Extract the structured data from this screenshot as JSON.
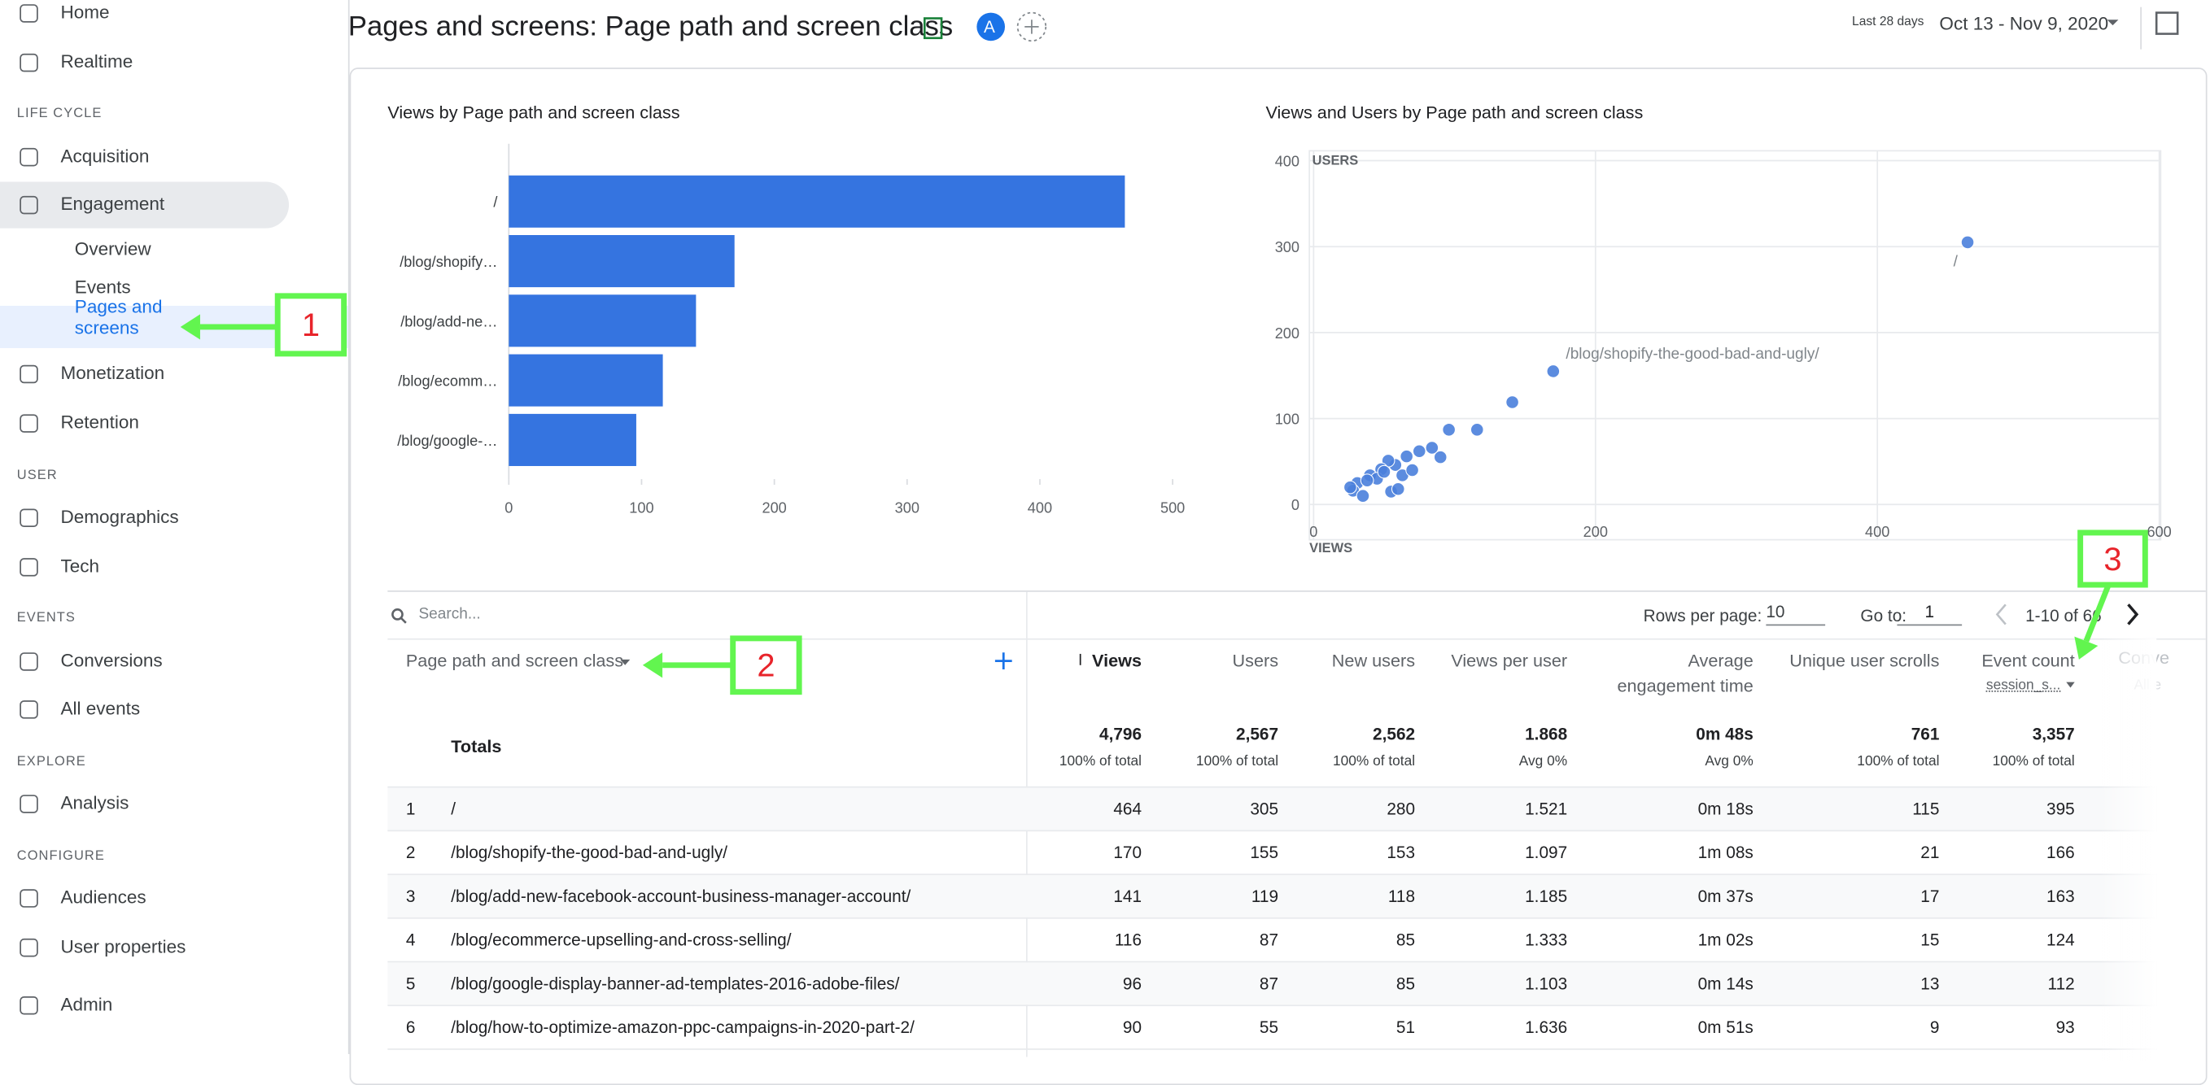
{
  "header": {
    "title": "Pages and screens: Page path and screen class",
    "avatar": "A",
    "date_range_label": "Last 28 days",
    "date_range": "Oct 13 - Nov 9, 2020"
  },
  "sidebar": [
    {
      "label": "Home",
      "level": "item"
    },
    {
      "label": "Realtime",
      "level": "item"
    },
    {
      "label": "LIFE CYCLE",
      "level": "section"
    },
    {
      "label": "Acquisition",
      "level": "item"
    },
    {
      "label": "Engagement",
      "level": "item",
      "selected": true
    },
    {
      "label": "Overview",
      "level": "sub"
    },
    {
      "label": "Events",
      "level": "sub"
    },
    {
      "label": "Pages and screens",
      "level": "sub",
      "active": true
    },
    {
      "label": "Monetization",
      "level": "item"
    },
    {
      "label": "Retention",
      "level": "item"
    },
    {
      "label": "USER",
      "level": "section"
    },
    {
      "label": "Demographics",
      "level": "item"
    },
    {
      "label": "Tech",
      "level": "item"
    },
    {
      "label": "EVENTS",
      "level": "section"
    },
    {
      "label": "Conversions",
      "level": "item"
    },
    {
      "label": "All events",
      "level": "item"
    },
    {
      "label": "EXPLORE",
      "level": "section"
    },
    {
      "label": "Analysis",
      "level": "item"
    },
    {
      "label": "CONFIGURE",
      "level": "section"
    },
    {
      "label": "Audiences",
      "level": "item"
    },
    {
      "label": "User properties",
      "level": "item"
    },
    {
      "label": "Admin",
      "level": "item"
    }
  ],
  "chart_data": [
    {
      "type": "bar",
      "orientation": "horizontal",
      "title": "Views by Page path and screen class",
      "categories": [
        "/",
        "/blog/shopify…",
        "/blog/add-ne…",
        "/blog/ecomm…",
        "/blog/google-…"
      ],
      "values": [
        464,
        170,
        141,
        116,
        96
      ],
      "color": "#3574e0",
      "xlim": [
        0,
        500
      ],
      "xticks": [
        0,
        100,
        200,
        300,
        400,
        500
      ]
    },
    {
      "type": "scatter",
      "title": "Views and Users by Page path and screen class",
      "x_label": "VIEWS",
      "y_label": "USERS",
      "x": [
        464,
        170,
        141,
        116,
        96,
        90,
        84,
        75,
        66,
        58,
        53,
        48,
        40,
        31,
        28,
        35,
        55,
        60,
        45,
        63,
        70,
        50,
        38,
        26
      ],
      "y": [
        305,
        155,
        119,
        87,
        87,
        55,
        66,
        62,
        56,
        46,
        51,
        41,
        34,
        25,
        16,
        10,
        15,
        18,
        30,
        34,
        40,
        38,
        28,
        20
      ],
      "point_labels": [
        "/",
        "/blog/shopify-the-good-bad-and-ugly/",
        null,
        null,
        null,
        null,
        null,
        null,
        null,
        null,
        null,
        null,
        null,
        null,
        null,
        null,
        null,
        null,
        null,
        null,
        null,
        null,
        null,
        null
      ],
      "color": "#4a80dc",
      "xlim": [
        0,
        600
      ],
      "ylim": [
        0,
        400
      ],
      "xticks": [
        0,
        200,
        400,
        600
      ],
      "yticks": [
        0,
        100,
        200,
        300,
        400
      ],
      "grid": true
    }
  ],
  "table": {
    "search_placeholder": "Search...",
    "rows_per_page_label": "Rows per page:",
    "rows_per_page": "10",
    "goto_label": "Go to:",
    "goto_value": "1",
    "range": "1-10 of 66",
    "dimension": "Page path and screen class",
    "columns": [
      {
        "label": "Views",
        "sorted": true
      },
      {
        "label": "Users"
      },
      {
        "label": "New users"
      },
      {
        "label": "Views per user"
      },
      {
        "label": "Average engagement time"
      },
      {
        "label": "Unique user scrolls"
      },
      {
        "label": "Event count",
        "sublabel": "session_s..."
      },
      {
        "label": "Conve",
        "sublabel": "All e"
      }
    ],
    "totals_label": "Totals",
    "totals": [
      {
        "value": "4,796",
        "note": "100% of total"
      },
      {
        "value": "2,567",
        "note": "100% of total"
      },
      {
        "value": "2,562",
        "note": "100% of total"
      },
      {
        "value": "1.868",
        "note": "Avg 0%"
      },
      {
        "value": "0m 48s",
        "note": "Avg 0%"
      },
      {
        "value": "761",
        "note": "100% of total"
      },
      {
        "value": "3,357",
        "note": "100% of total"
      }
    ],
    "rows": [
      [
        "1",
        "/",
        "464",
        "305",
        "280",
        "1.521",
        "0m 18s",
        "115",
        "395"
      ],
      [
        "2",
        "/blog/shopify-the-good-bad-and-ugly/",
        "170",
        "155",
        "153",
        "1.097",
        "1m 08s",
        "21",
        "166"
      ],
      [
        "3",
        "/blog/add-new-facebook-account-business-manager-account/",
        "141",
        "119",
        "118",
        "1.185",
        "0m 37s",
        "17",
        "163"
      ],
      [
        "4",
        "/blog/ecommerce-upselling-and-cross-selling/",
        "116",
        "87",
        "85",
        "1.333",
        "1m 02s",
        "15",
        "124"
      ],
      [
        "5",
        "/blog/google-display-banner-ad-templates-2016-adobe-files/",
        "96",
        "87",
        "85",
        "1.103",
        "0m 14s",
        "13",
        "112"
      ],
      [
        "6",
        "/blog/how-to-optimize-amazon-ppc-campaigns-in-2020-part-2/",
        "90",
        "55",
        "51",
        "1.636",
        "0m 51s",
        "9",
        "93"
      ]
    ]
  },
  "annotations": [
    "1",
    "2",
    "3"
  ]
}
